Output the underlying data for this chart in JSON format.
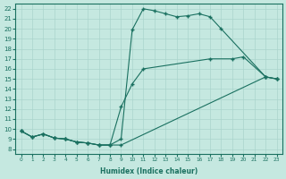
{
  "xlabel": "Humidex (Indice chaleur)",
  "xlim": [
    -0.5,
    23.5
  ],
  "ylim": [
    7.5,
    22.5
  ],
  "xticks": [
    0,
    1,
    2,
    3,
    4,
    5,
    6,
    7,
    8,
    9,
    10,
    11,
    12,
    13,
    14,
    15,
    16,
    17,
    18,
    19,
    20,
    21,
    22,
    23
  ],
  "yticks": [
    8,
    9,
    10,
    11,
    12,
    13,
    14,
    15,
    16,
    17,
    18,
    19,
    20,
    21,
    22
  ],
  "bg_color": "#c5e8e0",
  "line_color": "#1a7060",
  "grid_color": "#aad4cc",
  "curve1_x": [
    0,
    1,
    2,
    3,
    4,
    5,
    6,
    7,
    8,
    9,
    10,
    11,
    12,
    13,
    14,
    15,
    16,
    17,
    18,
    22,
    23
  ],
  "curve1_y": [
    9.8,
    9.2,
    9.5,
    9.1,
    9.0,
    8.7,
    8.6,
    8.4,
    8.4,
    9.0,
    19.9,
    22.0,
    21.8,
    21.5,
    21.2,
    21.3,
    21.5,
    21.2,
    20.0,
    15.2,
    15.0
  ],
  "curve2_x": [
    0,
    1,
    2,
    3,
    4,
    5,
    6,
    7,
    8,
    9,
    10,
    11,
    17,
    19,
    20,
    22,
    23
  ],
  "curve2_y": [
    9.8,
    9.2,
    9.5,
    9.1,
    9.0,
    8.7,
    8.6,
    8.4,
    8.4,
    12.2,
    14.5,
    16.0,
    17.0,
    17.0,
    17.2,
    15.2,
    15.0
  ],
  "curve3_x": [
    0,
    1,
    2,
    3,
    4,
    5,
    6,
    7,
    8,
    9,
    22,
    23
  ],
  "curve3_y": [
    9.8,
    9.2,
    9.5,
    9.1,
    9.0,
    8.7,
    8.6,
    8.4,
    8.4,
    8.4,
    15.2,
    15.0
  ]
}
